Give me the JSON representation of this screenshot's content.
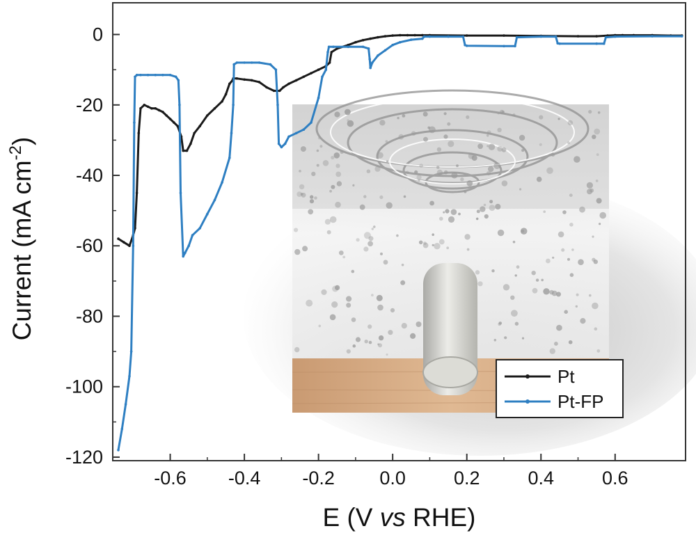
{
  "chart_data": {
    "type": "line",
    "xlabel": {
      "pre": "E (V ",
      "italic": "vs",
      "post": " RHE)"
    },
    "ylabel": {
      "pre": "Current (mA cm",
      "sup": "-2",
      "post": ")"
    },
    "xlim": [
      -0.755,
      0.79
    ],
    "ylim": [
      -121,
      9
    ],
    "xticks": [
      "-0.6",
      "-0.4",
      "-0.2",
      "0.0",
      "0.2",
      "0.4",
      "0.6"
    ],
    "xtick_values": [
      -0.6,
      -0.4,
      -0.2,
      0.0,
      0.2,
      0.4,
      0.6
    ],
    "yticks": [
      "0",
      "-20",
      "-40",
      "-60",
      "-80",
      "-100",
      "-120"
    ],
    "ytick_values": [
      0,
      -20,
      -40,
      -60,
      -80,
      -100,
      -120
    ],
    "legend": {
      "position": "bottom-right"
    },
    "illustration": "electrolyte bath with rising gas bubbles over a cylindrical electrode on a wooden base",
    "series": [
      {
        "name": "Pt",
        "color": "#1a1a1a",
        "x": [
          -0.74,
          -0.725,
          -0.71,
          -0.7,
          -0.695,
          -0.69,
          -0.685,
          -0.68,
          -0.67,
          -0.66,
          -0.65,
          -0.64,
          -0.63,
          -0.62,
          -0.61,
          -0.6,
          -0.59,
          -0.58,
          -0.57,
          -0.565,
          -0.555,
          -0.545,
          -0.535,
          -0.52,
          -0.5,
          -0.48,
          -0.46,
          -0.45,
          -0.44,
          -0.432,
          -0.43,
          -0.42,
          -0.4,
          -0.38,
          -0.36,
          -0.34,
          -0.32,
          -0.305,
          -0.295,
          -0.28,
          -0.26,
          -0.24,
          -0.22,
          -0.2,
          -0.18,
          -0.17,
          -0.165,
          -0.15,
          -0.12,
          -0.1,
          -0.08,
          -0.06,
          -0.04,
          -0.02,
          0.0,
          0.02,
          0.04,
          0.06,
          0.08,
          0.1,
          0.2,
          0.3,
          0.4,
          0.5,
          0.55,
          0.58,
          0.6,
          0.62,
          0.65,
          0.7,
          0.75,
          0.78
        ],
        "y": [
          -58,
          -59,
          -60,
          -57,
          -55,
          -45,
          -28,
          -21,
          -20,
          -20.5,
          -21,
          -21,
          -21.5,
          -22,
          -23,
          -24,
          -25,
          -26,
          -29,
          -33,
          -33,
          -31,
          -28,
          -26,
          -23,
          -21,
          -19,
          -17,
          -14,
          -13,
          -12.5,
          -12.5,
          -12.8,
          -13,
          -13.5,
          -15,
          -16,
          -16,
          -15,
          -14,
          -13,
          -12,
          -11,
          -10,
          -9,
          -8,
          -5,
          -4,
          -3,
          -2.2,
          -1.6,
          -1.2,
          -0.8,
          -0.5,
          -0.3,
          -0.2,
          -0.2,
          -0.2,
          -0.2,
          -0.2,
          -0.3,
          -0.3,
          -0.4,
          -0.5,
          -0.5,
          -0.3,
          -0.2,
          -0.2,
          -0.2,
          -0.2,
          -0.3,
          -0.3
        ]
      },
      {
        "name": "Pt-FP",
        "color": "#2e7fc2",
        "x": [
          -0.74,
          -0.73,
          -0.72,
          -0.71,
          -0.705,
          -0.7,
          -0.697,
          -0.695,
          -0.69,
          -0.68,
          -0.66,
          -0.64,
          -0.62,
          -0.6,
          -0.585,
          -0.578,
          -0.575,
          -0.572,
          -0.565,
          -0.56,
          -0.55,
          -0.54,
          -0.52,
          -0.5,
          -0.48,
          -0.46,
          -0.44,
          -0.435,
          -0.43,
          -0.428,
          -0.42,
          -0.4,
          -0.38,
          -0.36,
          -0.33,
          -0.315,
          -0.31,
          -0.307,
          -0.3,
          -0.29,
          -0.28,
          -0.26,
          -0.24,
          -0.22,
          -0.2,
          -0.19,
          -0.18,
          -0.175,
          -0.172,
          -0.16,
          -0.12,
          -0.08,
          -0.065,
          -0.062,
          -0.06,
          -0.055,
          -0.04,
          -0.02,
          0.0,
          0.02,
          0.05,
          0.08,
          0.085,
          0.1,
          0.15,
          0.19,
          0.195,
          0.2,
          0.3,
          0.33,
          0.335,
          0.4,
          0.44,
          0.445,
          0.45,
          0.55,
          0.57,
          0.575,
          0.6,
          0.7,
          0.78
        ],
        "y": [
          -118,
          -112,
          -105,
          -97,
          -90,
          -60,
          -25,
          -12,
          -11.5,
          -11.5,
          -11.5,
          -11.5,
          -11.5,
          -11.5,
          -12,
          -13,
          -20,
          -45,
          -63,
          -62,
          -60,
          -57,
          -55,
          -51,
          -47,
          -42,
          -35,
          -28,
          -20,
          -8.5,
          -8,
          -8,
          -8,
          -8,
          -8.5,
          -10,
          -20,
          -31,
          -32,
          -31,
          -29,
          -28,
          -27,
          -25,
          -18,
          -12,
          -10,
          -5,
          -3.5,
          -3.5,
          -3.5,
          -3.5,
          -4,
          -7,
          -9.5,
          -8,
          -6,
          -4.5,
          -3,
          -2.2,
          -1.5,
          -1.2,
          -0.6,
          -0.6,
          -0.6,
          -0.6,
          -3,
          -3.2,
          -3.3,
          -3.3,
          -0.8,
          -0.6,
          -0.6,
          -2.5,
          -2.6,
          -2.6,
          -2.6,
          -0.8,
          -0.6,
          -0.5,
          -0.5
        ]
      }
    ]
  }
}
